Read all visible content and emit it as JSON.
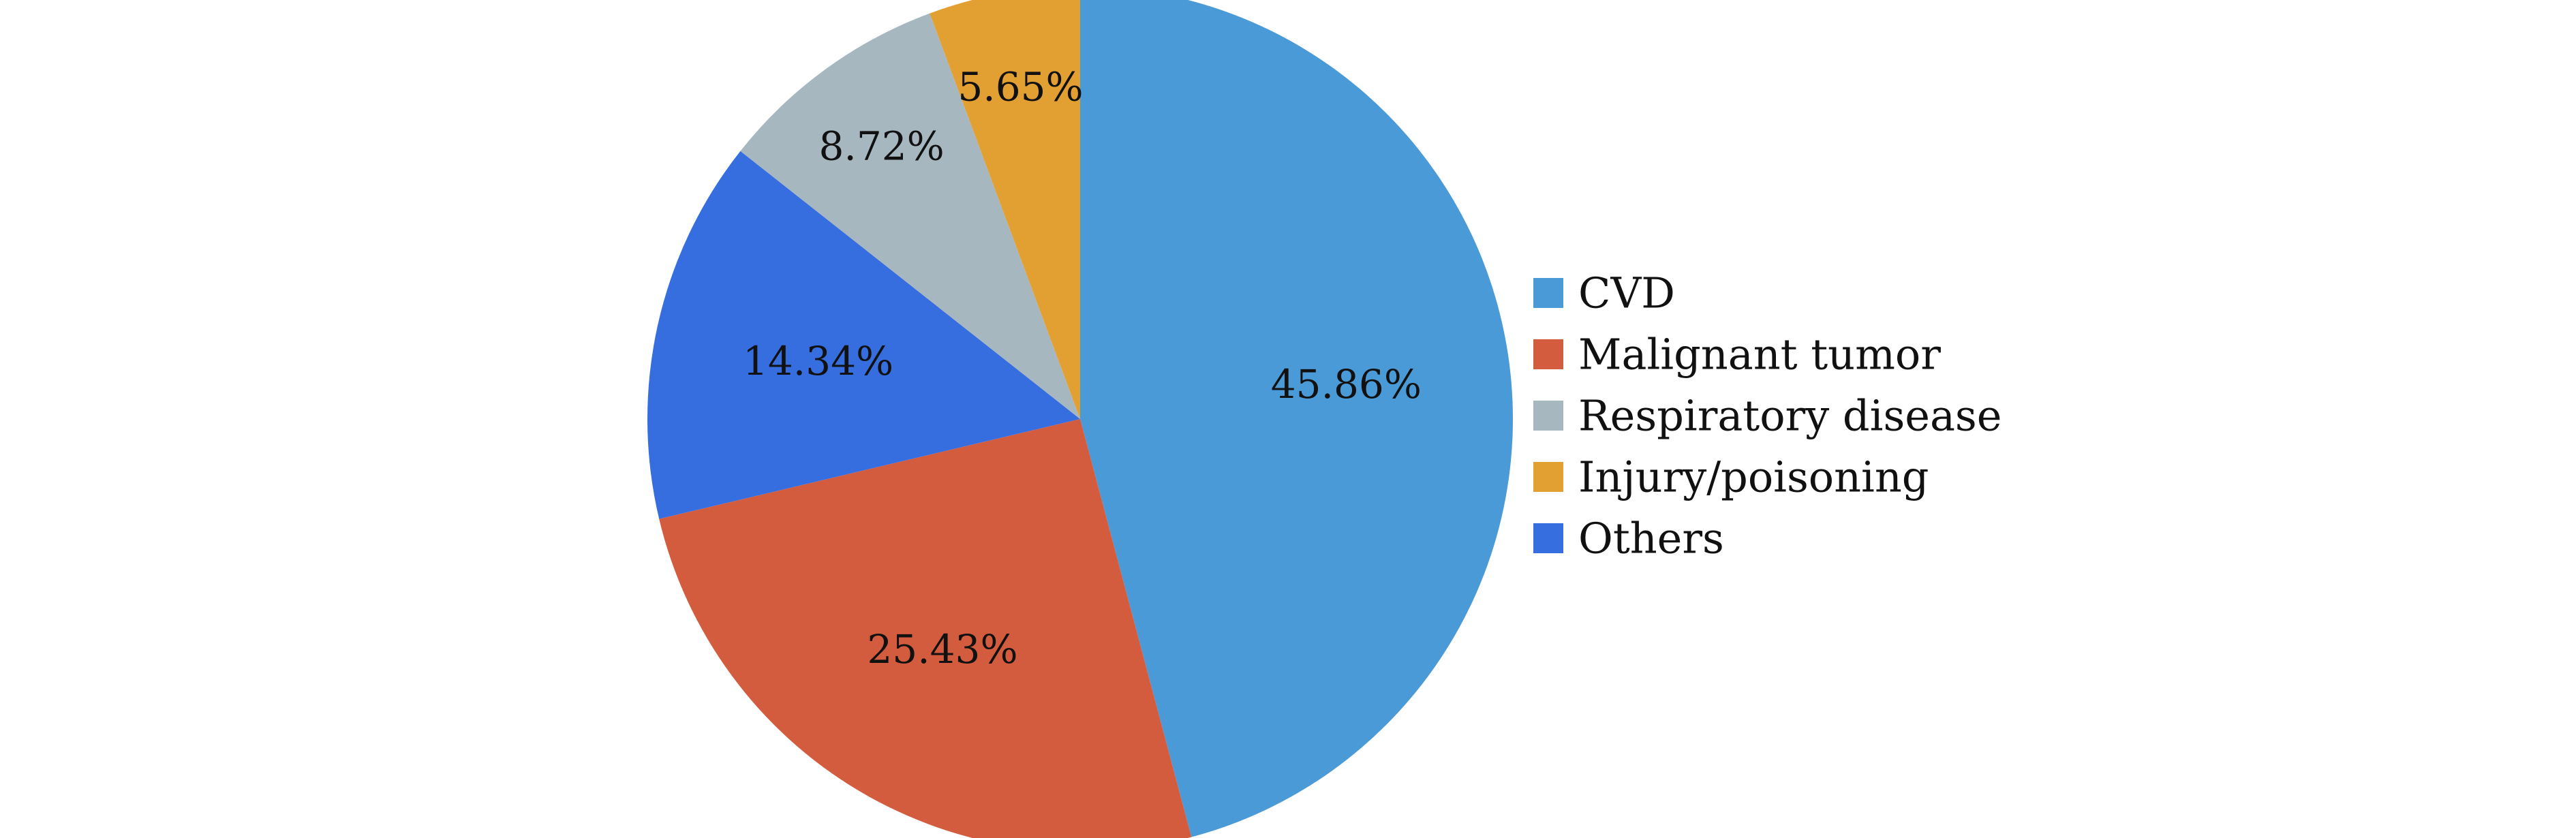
{
  "chart_data": {
    "type": "pie",
    "title": "",
    "start_angle_deg": 0,
    "direction": "clockwise",
    "legend_position": "right",
    "slices": [
      {
        "label": "CVD",
        "value": 45.86,
        "display": "45.86%",
        "color": "#4b9ad8"
      },
      {
        "label": "Malignant tumor",
        "value": 25.43,
        "display": "25.43%",
        "color": "#d45c3e"
      },
      {
        "label": "Others",
        "value": 14.34,
        "display": "14.34%",
        "color": "#366ee0"
      },
      {
        "label": "Respiratory disease",
        "value": 8.72,
        "display": "8.72%",
        "color": "#a7b7bf"
      },
      {
        "label": "Injury/poisoning",
        "value": 5.65,
        "display": "5.65%",
        "color": "#e2a033"
      }
    ],
    "legend": [
      {
        "label": "CVD",
        "color": "#4b9ad8"
      },
      {
        "label": "Malignant tumor",
        "color": "#d45c3e"
      },
      {
        "label": "Respiratory disease",
        "color": "#a7b7bf"
      },
      {
        "label": "Injury/poisoning",
        "color": "#e2a033"
      },
      {
        "label": "Others",
        "color": "#366ee0"
      }
    ]
  }
}
